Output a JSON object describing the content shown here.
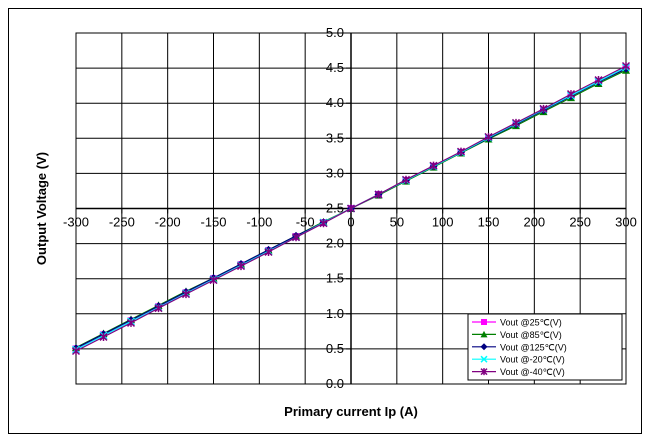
{
  "chart_data": {
    "type": "line",
    "xlabel": "Primary current Ip (A)",
    "ylabel": "Output Voltage (V)",
    "xlim": [
      -300,
      300
    ],
    "ylim": [
      0.0,
      5.0
    ],
    "xticks": [
      "-300",
      "-250",
      "-200",
      "-150",
      "-100",
      "-50",
      "0",
      "50",
      "100",
      "150",
      "200",
      "250",
      "300"
    ],
    "yticks": [
      "0.0",
      "0.5",
      "1.0",
      "1.5",
      "2.0",
      "2.5",
      "3.0",
      "3.5",
      "4.0",
      "4.5",
      "5.0"
    ],
    "grid": true,
    "legend_position": "bottom-right",
    "x": [
      -300,
      -270,
      -240,
      -210,
      -180,
      -150,
      -120,
      -90,
      -60,
      -30,
      0,
      30,
      60,
      90,
      120,
      150,
      180,
      210,
      240,
      270,
      300
    ],
    "series": [
      {
        "name": "Vout @25℃(V)",
        "color": "#ff00ff",
        "marker": "square",
        "values": [
          0.5,
          0.7,
          0.9,
          1.1,
          1.3,
          1.5,
          1.7,
          1.9,
          2.1,
          2.3,
          2.5,
          2.7,
          2.9,
          3.1,
          3.3,
          3.5,
          3.7,
          3.9,
          4.1,
          4.3,
          4.5
        ]
      },
      {
        "name": "Vout @85℃(V)",
        "color": "#008000",
        "marker": "triangle",
        "values": [
          0.52,
          0.72,
          0.92,
          1.12,
          1.32,
          1.51,
          1.71,
          1.91,
          2.11,
          2.31,
          2.5,
          2.69,
          2.89,
          3.09,
          3.29,
          3.49,
          3.68,
          3.88,
          4.08,
          4.28,
          4.47
        ]
      },
      {
        "name": "Vout @125℃(V)",
        "color": "#000080",
        "marker": "diamond",
        "values": [
          0.51,
          0.71,
          0.91,
          1.11,
          1.31,
          1.51,
          1.71,
          1.91,
          2.11,
          2.3,
          2.5,
          2.7,
          2.9,
          3.1,
          3.3,
          3.5,
          3.7,
          3.9,
          4.1,
          4.3,
          4.49
        ]
      },
      {
        "name": "Vout @-20℃(V)",
        "color": "#00ffff",
        "marker": "x",
        "values": [
          0.49,
          0.69,
          0.89,
          1.09,
          1.29,
          1.49,
          1.69,
          1.89,
          2.09,
          2.3,
          2.5,
          2.7,
          2.9,
          3.1,
          3.3,
          3.51,
          3.71,
          3.91,
          4.11,
          4.31,
          4.51
        ]
      },
      {
        "name": "Vout @-40℃(V)",
        "color": "#800080",
        "marker": "star",
        "values": [
          0.47,
          0.67,
          0.87,
          1.08,
          1.28,
          1.48,
          1.68,
          1.88,
          2.09,
          2.29,
          2.5,
          2.7,
          2.91,
          3.11,
          3.31,
          3.52,
          3.72,
          3.92,
          4.13,
          4.33,
          4.53
        ]
      }
    ]
  }
}
